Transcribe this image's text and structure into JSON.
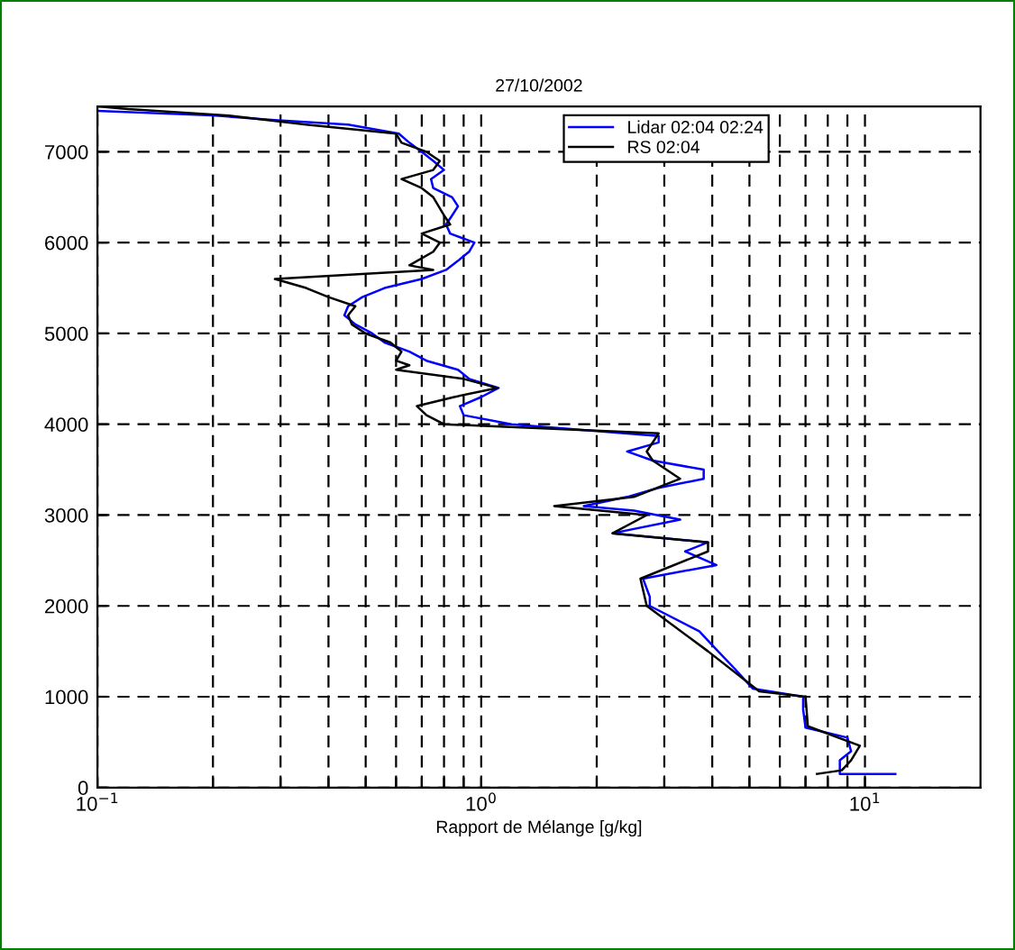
{
  "chart_data": {
    "type": "line",
    "title": "27/10/2002",
    "xlabel": "Rapport de Mélange [g/kg]",
    "log": "x",
    "grid": true,
    "legend": "top right",
    "xlim": [
      0.1,
      20
    ],
    "ylim": [
      0,
      7500
    ],
    "xticks": [
      {
        "value": 0.1,
        "label": "10$^{−1}$"
      },
      {
        "value": 0.2,
        "label": null
      },
      {
        "value": 0.3,
        "label": null
      },
      {
        "value": 0.4,
        "label": null
      },
      {
        "value": 0.5,
        "label": null
      },
      {
        "value": 0.6,
        "label": null
      },
      {
        "value": 0.7,
        "label": null
      },
      {
        "value": 0.8,
        "label": null
      },
      {
        "value": 0.9,
        "label": null
      },
      {
        "value": 1,
        "label": "10$^{0}$"
      },
      {
        "value": 2,
        "label": null
      },
      {
        "value": 3,
        "label": null
      },
      {
        "value": 4,
        "label": null
      },
      {
        "value": 5,
        "label": null
      },
      {
        "value": 6,
        "label": null
      },
      {
        "value": 7,
        "label": null
      },
      {
        "value": 8,
        "label": null
      },
      {
        "value": 9,
        "label": null
      },
      {
        "value": 10,
        "label": "10$^{1}$"
      }
    ],
    "yticks": [
      0,
      1000,
      2000,
      3000,
      4000,
      5000,
      6000,
      7000
    ],
    "series": [
      {
        "name": "Lidar 02:04 02:24",
        "color": "#0000ff",
        "x": [
          12,
          8.6,
          8.6,
          9.2,
          9.0,
          7.0,
          6.9,
          6.9,
          5.1,
          4.55,
          4.1,
          3.7,
          2.75,
          2.75,
          2.64,
          4.1,
          3.4,
          3.9,
          2.2,
          3.3,
          2.5,
          1.85,
          2.4,
          2.9,
          3.8,
          3.8,
          2.8,
          2.4,
          2.9,
          2.9,
          1.2,
          0.9,
          0.88,
          1.0,
          1.11,
          0.93,
          0.87,
          0.72,
          0.65,
          0.56,
          0.52,
          0.47,
          0.44,
          0.45,
          0.49,
          0.56,
          0.7,
          0.81,
          0.87,
          0.93,
          0.96,
          0.83,
          0.81,
          0.84,
          0.87,
          0.84,
          0.75,
          0.74,
          0.8,
          0.75,
          0.7,
          0.65,
          0.61,
          0.45,
          0.29,
          0.2,
          0.1
        ],
        "values": [
          150,
          150,
          300,
          400,
          550,
          660,
          860,
          1000,
          1090,
          1320,
          1520,
          1720,
          2000,
          2100,
          2300,
          2450,
          2600,
          2700,
          2800,
          2950,
          3050,
          3100,
          3200,
          3300,
          3400,
          3500,
          3600,
          3700,
          3800,
          3870,
          4000,
          4100,
          4200,
          4300,
          4400,
          4500,
          4600,
          4700,
          4800,
          4900,
          5000,
          5100,
          5200,
          5300,
          5400,
          5500,
          5600,
          5700,
          5800,
          5900,
          6000,
          6100,
          6200,
          6300,
          6400,
          6500,
          6600,
          6700,
          6800,
          6900,
          7000,
          7100,
          7200,
          7300,
          7350,
          7400,
          7450
        ]
      },
      {
        "name": "RS 02:04",
        "color": "#000000",
        "x": [
          7.5,
          8.7,
          9.2,
          9.7,
          7.1,
          7.0,
          5.3,
          3.9,
          2.7,
          2.6,
          3.9,
          3.9,
          2.2,
          2.7,
          1.55,
          2.5,
          3.3,
          2.8,
          2.7,
          2.9,
          0.8,
          0.72,
          0.68,
          0.85,
          1.1,
          0.9,
          0.6,
          0.65,
          0.6,
          0.62,
          0.58,
          0.5,
          0.46,
          0.45,
          0.47,
          0.4,
          0.35,
          0.29,
          0.75,
          0.65,
          0.75,
          0.78,
          0.7,
          0.83,
          0.8,
          0.75,
          0.7,
          0.62,
          0.75,
          0.78,
          0.72,
          0.62,
          0.6,
          0.35,
          0.22,
          0.12,
          0.1
        ],
        "values": [
          150,
          190,
          300,
          460,
          675,
          1000,
          1060,
          1500,
          2000,
          2300,
          2600,
          2700,
          2800,
          3000,
          3100,
          3200,
          3400,
          3600,
          3700,
          3900,
          4000,
          4100,
          4200,
          4300,
          4400,
          4500,
          4600,
          4650,
          4700,
          4800,
          4900,
          5000,
          5100,
          5200,
          5300,
          5400,
          5500,
          5600,
          5700,
          5750,
          5900,
          6000,
          6100,
          6200,
          6300,
          6500,
          6600,
          6700,
          6800,
          6900,
          7000,
          7100,
          7200,
          7300,
          7400,
          7470,
          7500
        ]
      }
    ]
  }
}
